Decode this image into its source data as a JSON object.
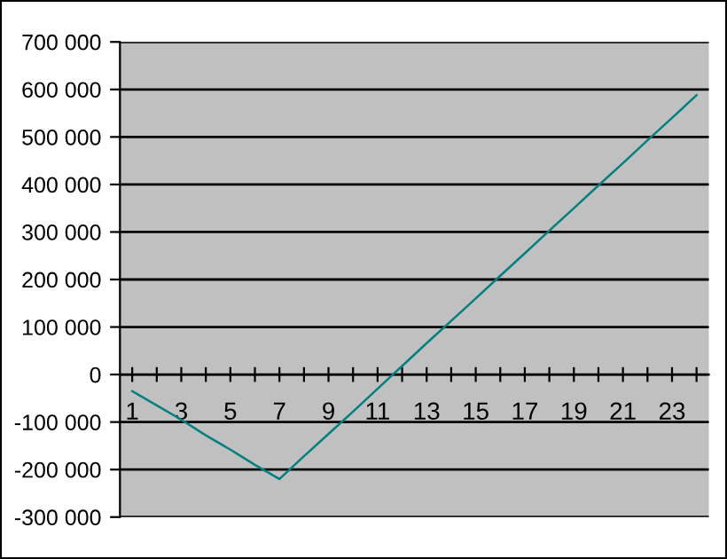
{
  "chart_data": {
    "type": "line",
    "categories": [
      "1",
      null,
      "3",
      null,
      "5",
      null,
      "7",
      null,
      "9",
      null,
      "11",
      null,
      "13",
      null,
      "15",
      null,
      "17",
      null,
      "19",
      null,
      "21",
      null,
      "23",
      null
    ],
    "series": [
      {
        "color": "#008080",
        "values": [
          -35000,
          -65000,
          -95000,
          -128000,
          -158000,
          -190000,
          -220000,
          -172000,
          -125000,
          -78000,
          -30000,
          18000,
          66000,
          113000,
          160000,
          208000,
          255000,
          303000,
          350000,
          398000,
          445000,
          493000,
          540000,
          588000
        ]
      }
    ],
    "ylim": [
      -300000,
      700000
    ],
    "yticks": [
      {
        "value": -300000,
        "label": "-300 000"
      },
      {
        "value": -200000,
        "label": "-200 000"
      },
      {
        "value": -100000,
        "label": "-100 000"
      },
      0,
      {
        "value": 100000,
        "label": "100 000"
      },
      {
        "value": 200000,
        "label": "200 000"
      },
      {
        "value": 300000,
        "label": "300 000"
      },
      {
        "value": 400000,
        "label": "400 000"
      },
      {
        "value": 500000,
        "label": "500 000"
      },
      {
        "value": 600000,
        "label": "600 000"
      },
      {
        "value": 700000,
        "label": "700 000"
      }
    ],
    "grid": "y",
    "marker": "none",
    "line_style": "solid"
  }
}
